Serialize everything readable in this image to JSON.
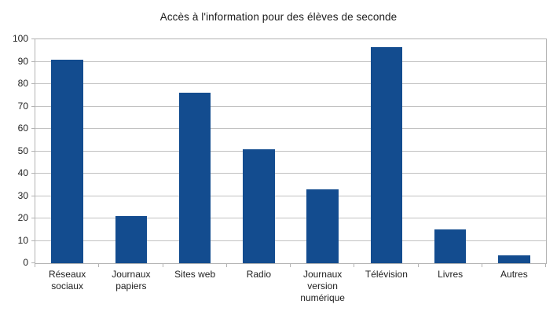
{
  "chart_data": {
    "type": "bar",
    "title": "Accès à l'information pour des élèves de seconde",
    "categories": [
      "Réseaux sociaux",
      "Journaux papiers",
      "Sites web",
      "Radio",
      "Journaux version numérique",
      "Télévision",
      "Livres",
      "Autres"
    ],
    "values": [
      91,
      21,
      76,
      51,
      33,
      96.5,
      15,
      3.5
    ],
    "xlabel": "",
    "ylabel": "",
    "ylim": [
      0,
      100
    ],
    "y_ticks": [
      0,
      10,
      20,
      30,
      40,
      50,
      60,
      70,
      80,
      90,
      100
    ],
    "grid": "horizontal",
    "legend": "none",
    "colors": {
      "bar": "#134c8f",
      "gridline": "#c2c2c2",
      "axis_border": "#b3b3b3",
      "text": "#222222",
      "title_text": "#1c1c1c",
      "background": "#ffffff"
    }
  }
}
